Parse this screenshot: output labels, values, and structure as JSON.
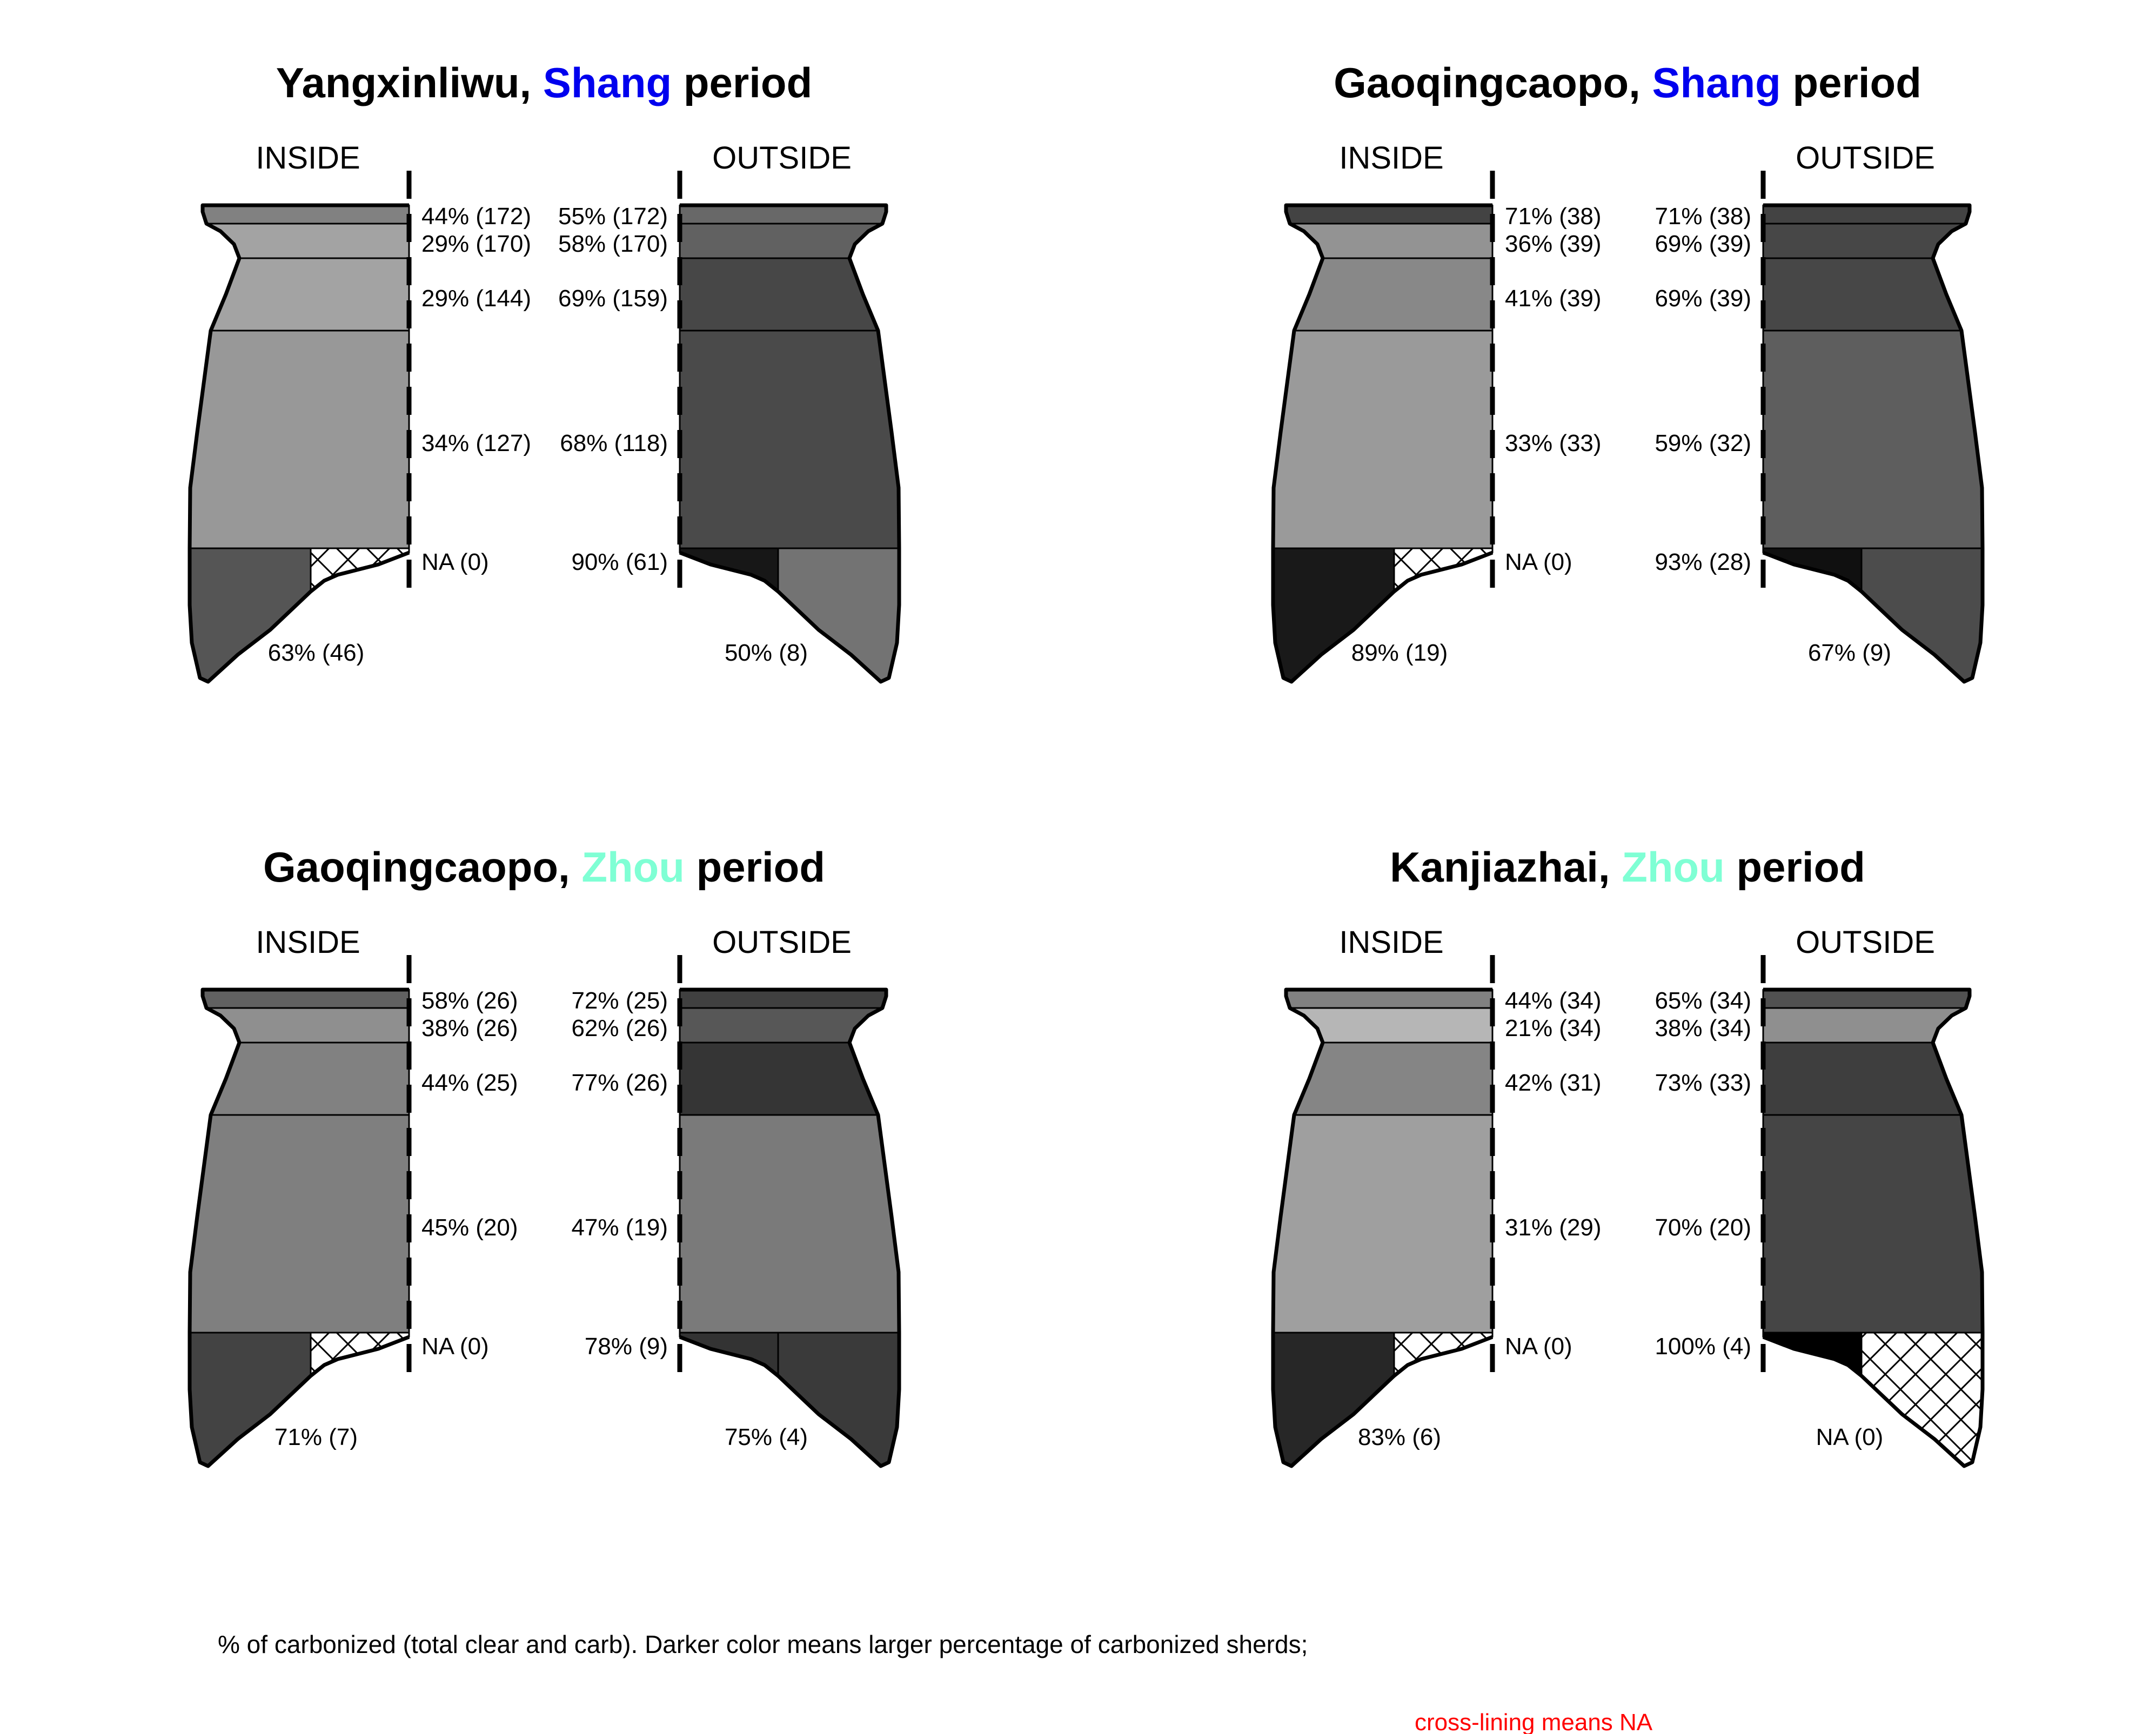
{
  "panels": [
    {
      "site": "Yangxinliwu",
      "period": "Shang",
      "period_color": "#0000ee",
      "suffix": " period",
      "inside_label": "INSIDE",
      "outside_label": "OUTSIDE",
      "inside": [
        {
          "pct": 44,
          "n": 172,
          "label": "44% (172)"
        },
        {
          "pct": 29,
          "n": 170,
          "label": "29% (170)"
        },
        {
          "pct": 29,
          "n": 144,
          "label": "29% (144)"
        },
        {
          "pct": 34,
          "n": 127,
          "label": "34% (127)"
        },
        {
          "pct": null,
          "n": 0,
          "label": "NA (0)"
        },
        {
          "pct": 63,
          "n": 46,
          "label": "63% (46)"
        }
      ],
      "outside": [
        {
          "pct": 55,
          "n": 172,
          "label": "55% (172)"
        },
        {
          "pct": 58,
          "n": 170,
          "label": "58% (170)"
        },
        {
          "pct": 69,
          "n": 159,
          "label": "69% (159)"
        },
        {
          "pct": 68,
          "n": 118,
          "label": "68% (118)"
        },
        {
          "pct": 90,
          "n": 61,
          "label": "90% (61)"
        },
        {
          "pct": 50,
          "n": 8,
          "label": "50% (8)"
        }
      ]
    },
    {
      "site": "Gaoqingcaopo",
      "period": "Shang",
      "period_color": "#0000ee",
      "suffix": " period",
      "inside_label": "INSIDE",
      "outside_label": "OUTSIDE",
      "inside": [
        {
          "pct": 71,
          "n": 38,
          "label": "71% (38)"
        },
        {
          "pct": 36,
          "n": 39,
          "label": "36% (39)"
        },
        {
          "pct": 41,
          "n": 39,
          "label": "41% (39)"
        },
        {
          "pct": 33,
          "n": 33,
          "label": "33% (33)"
        },
        {
          "pct": null,
          "n": 0,
          "label": "NA (0)"
        },
        {
          "pct": 89,
          "n": 19,
          "label": "89% (19)"
        }
      ],
      "outside": [
        {
          "pct": 71,
          "n": 38,
          "label": "71% (38)"
        },
        {
          "pct": 69,
          "n": 39,
          "label": "69% (39)"
        },
        {
          "pct": 69,
          "n": 39,
          "label": "69% (39)"
        },
        {
          "pct": 59,
          "n": 32,
          "label": "59% (32)"
        },
        {
          "pct": 93,
          "n": 28,
          "label": "93% (28)"
        },
        {
          "pct": 67,
          "n": 9,
          "label": "67% (9)"
        }
      ]
    },
    {
      "site": "Gaoqingcaopo",
      "period": "Zhou",
      "period_color": "#7fffd4",
      "suffix": " period",
      "inside_label": "INSIDE",
      "outside_label": "OUTSIDE",
      "inside": [
        {
          "pct": 58,
          "n": 26,
          "label": "58% (26)"
        },
        {
          "pct": 38,
          "n": 26,
          "label": "38% (26)"
        },
        {
          "pct": 44,
          "n": 25,
          "label": "44% (25)"
        },
        {
          "pct": 45,
          "n": 20,
          "label": "45% (20)"
        },
        {
          "pct": null,
          "n": 0,
          "label": "NA (0)"
        },
        {
          "pct": 71,
          "n": 7,
          "label": "71% (7)"
        }
      ],
      "outside": [
        {
          "pct": 72,
          "n": 25,
          "label": "72% (25)"
        },
        {
          "pct": 62,
          "n": 26,
          "label": "62% (26)"
        },
        {
          "pct": 77,
          "n": 26,
          "label": "77% (26)"
        },
        {
          "pct": 47,
          "n": 19,
          "label": "47% (19)"
        },
        {
          "pct": 78,
          "n": 9,
          "label": "78% (9)"
        },
        {
          "pct": 75,
          "n": 4,
          "label": "75% (4)"
        }
      ]
    },
    {
      "site": "Kanjiazhai",
      "period": "Zhou",
      "period_color": "#7fffd4",
      "suffix": " period",
      "inside_label": "INSIDE",
      "outside_label": "OUTSIDE",
      "inside": [
        {
          "pct": 44,
          "n": 34,
          "label": "44% (34)"
        },
        {
          "pct": 21,
          "n": 34,
          "label": "21% (34)"
        },
        {
          "pct": 42,
          "n": 31,
          "label": "42% (31)"
        },
        {
          "pct": 31,
          "n": 29,
          "label": "31% (29)"
        },
        {
          "pct": null,
          "n": 0,
          "label": "NA (0)"
        },
        {
          "pct": 83,
          "n": 6,
          "label": "83% (6)"
        }
      ],
      "outside": [
        {
          "pct": 65,
          "n": 34,
          "label": "65% (34)"
        },
        {
          "pct": 38,
          "n": 34,
          "label": "38% (34)"
        },
        {
          "pct": 73,
          "n": 33,
          "label": "73% (33)"
        },
        {
          "pct": 70,
          "n": 20,
          "label": "70% (20)"
        },
        {
          "pct": 100,
          "n": 4,
          "label": "100% (4)"
        },
        {
          "pct": null,
          "n": 0,
          "label": "NA (0)"
        }
      ]
    }
  ],
  "caption": "% of carbonized (total clear and carb). Darker color means larger percentage of carbonized sherds;",
  "na_note": "cross-lining means NA"
}
